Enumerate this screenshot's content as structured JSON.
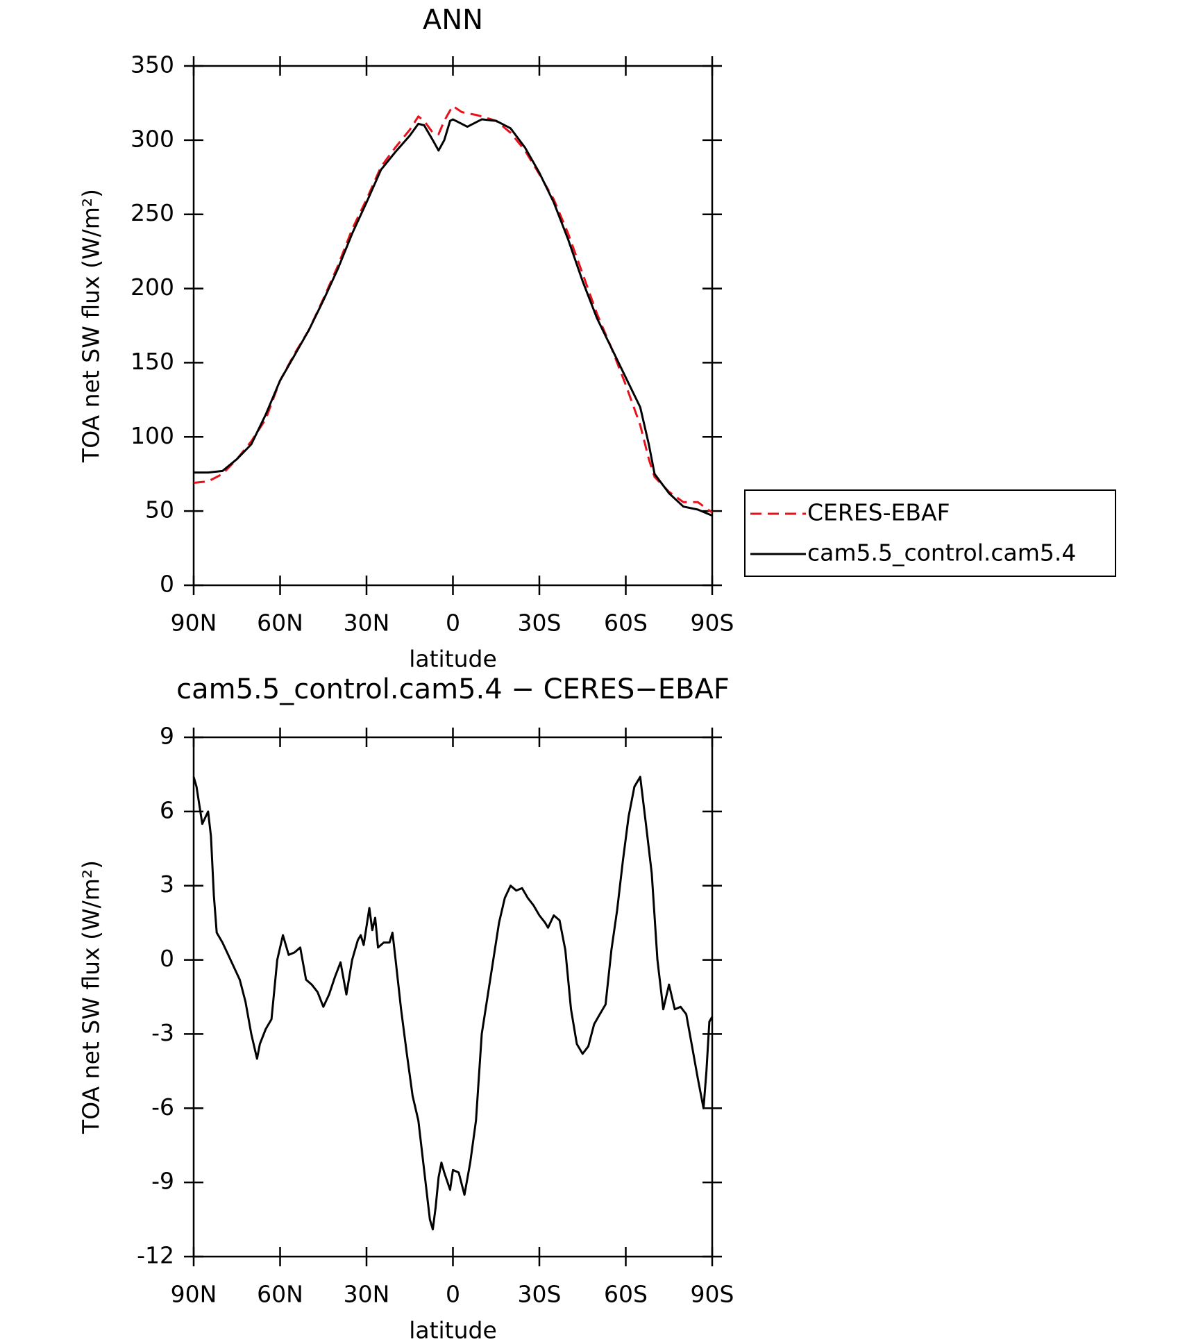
{
  "chart_data": [
    {
      "type": "line",
      "title": "ANN",
      "xlabel": "latitude",
      "ylabel": "TOA net SW flux (W/m²)",
      "xlim": [
        90,
        -90
      ],
      "xticks": [
        {
          "value": 90,
          "label": "90N"
        },
        {
          "value": 60,
          "label": "60N"
        },
        {
          "value": 30,
          "label": "30N"
        },
        0,
        {
          "value": -30,
          "label": "30S"
        },
        {
          "value": -60,
          "label": "60S"
        },
        {
          "value": -90,
          "label": "90S"
        }
      ],
      "ylim": [
        0,
        350
      ],
      "yticks": [
        0,
        50,
        100,
        150,
        200,
        250,
        300,
        350
      ],
      "legend": "right",
      "x": [
        90,
        85,
        80,
        75,
        70,
        65,
        60,
        55,
        50,
        45,
        40,
        35,
        30,
        25,
        20,
        15,
        12,
        10,
        7,
        5,
        3,
        1,
        0,
        -3,
        -5,
        -8,
        -10,
        -15,
        -20,
        -25,
        -30,
        -35,
        -40,
        -45,
        -50,
        -55,
        -60,
        -65,
        -68,
        -70,
        -75,
        -80,
        -85,
        -90
      ],
      "series": [
        {
          "name": "CERES-EBAF",
          "color": "#e8101a",
          "dashed": true,
          "values": [
            69,
            70,
            75,
            85,
            97,
            112,
            138,
            156,
            172,
            193,
            215,
            240,
            260,
            282,
            295,
            307,
            316,
            313,
            305,
            304,
            313,
            320,
            323,
            319,
            318,
            317,
            316,
            313,
            305,
            293,
            277,
            260,
            237,
            210,
            183,
            160,
            135,
            108,
            85,
            73,
            63,
            56,
            56,
            49
          ]
        },
        {
          "name": "cam5.5_control.cam5.4",
          "color": "#000000",
          "dashed": false,
          "values": [
            76,
            76,
            77,
            85,
            95,
            115,
            138,
            155,
            172,
            192,
            213,
            237,
            258,
            280,
            292,
            303,
            311,
            310,
            300,
            293,
            300,
            313,
            314,
            311,
            309,
            312,
            314,
            313,
            308,
            295,
            278,
            258,
            233,
            205,
            180,
            160,
            140,
            120,
            95,
            75,
            62,
            53,
            51,
            47
          ]
        }
      ]
    },
    {
      "type": "line",
      "title": "cam5.5_control.cam5.4 − CERES−EBAF",
      "xlabel": "latitude",
      "ylabel": "TOA net SW flux (W/m²)",
      "xlim": [
        90,
        -90
      ],
      "xticks": [
        {
          "value": 90,
          "label": "90N"
        },
        {
          "value": 60,
          "label": "60N"
        },
        {
          "value": 30,
          "label": "30N"
        },
        0,
        {
          "value": -30,
          "label": "30S"
        },
        {
          "value": -60,
          "label": "60S"
        },
        {
          "value": -90,
          "label": "90S"
        }
      ],
      "ylim": [
        -12,
        9
      ],
      "yticks": [
        -12,
        -9,
        -6,
        -3,
        0,
        3,
        6,
        9
      ],
      "color": "#000000",
      "x": [
        90,
        89,
        87,
        85,
        84,
        83,
        82,
        80,
        78,
        76,
        74,
        72,
        70,
        68,
        67,
        65,
        63,
        61,
        59,
        57,
        55,
        53,
        51,
        49,
        47,
        45,
        43,
        41,
        39,
        37,
        35,
        33,
        32,
        31,
        29,
        28,
        27,
        26,
        24,
        22,
        21,
        20,
        18,
        16,
        14,
        12,
        10,
        8,
        7,
        6,
        5,
        4,
        3,
        1,
        0,
        -2,
        -4,
        -6,
        -8,
        -10,
        -12,
        -14,
        -16,
        -18,
        -20,
        -22,
        -24,
        -26,
        -28,
        -30,
        -32,
        -33,
        -35,
        -37,
        -39,
        -41,
        -43,
        -45,
        -47,
        -49,
        -51,
        -53,
        -55,
        -57,
        -59,
        -61,
        -63,
        -65,
        -67,
        -69,
        -71,
        -73,
        -75,
        -77,
        -79,
        -81,
        -83,
        -85,
        -87,
        -88,
        -89,
        -90
      ],
      "values": [
        7.4,
        7.0,
        5.5,
        6.0,
        5.0,
        2.6,
        1.1,
        0.7,
        0.2,
        -0.3,
        -0.8,
        -1.7,
        -3.0,
        -4.0,
        -3.4,
        -2.8,
        -2.4,
        0.0,
        1.0,
        0.2,
        0.3,
        0.5,
        -0.8,
        -1.0,
        -1.3,
        -1.9,
        -1.4,
        -0.7,
        -0.1,
        -1.4,
        0.0,
        0.8,
        1.0,
        0.6,
        2.1,
        1.2,
        1.7,
        0.5,
        0.7,
        0.7,
        1.1,
        0.1,
        -2.0,
        -3.8,
        -5.5,
        -6.5,
        -8.5,
        -10.5,
        -10.9,
        -10.0,
        -8.8,
        -8.2,
        -8.6,
        -9.3,
        -8.5,
        -8.6,
        -9.5,
        -8.2,
        -6.5,
        -3.0,
        -1.5,
        0.0,
        1.5,
        2.5,
        3.0,
        2.8,
        2.9,
        2.5,
        2.2,
        1.8,
        1.5,
        1.3,
        1.8,
        1.6,
        0.4,
        -2.0,
        -3.4,
        -3.8,
        -3.5,
        -2.6,
        -2.2,
        -1.8,
        0.4,
        2.0,
        4.0,
        5.8,
        7.0,
        7.4,
        5.5,
        3.5,
        0.0,
        -2.0,
        -1.0,
        -2.0,
        -1.9,
        -2.2,
        -3.5,
        -4.8,
        -6.0,
        -4.5,
        -2.5,
        -2.3
      ]
    }
  ]
}
